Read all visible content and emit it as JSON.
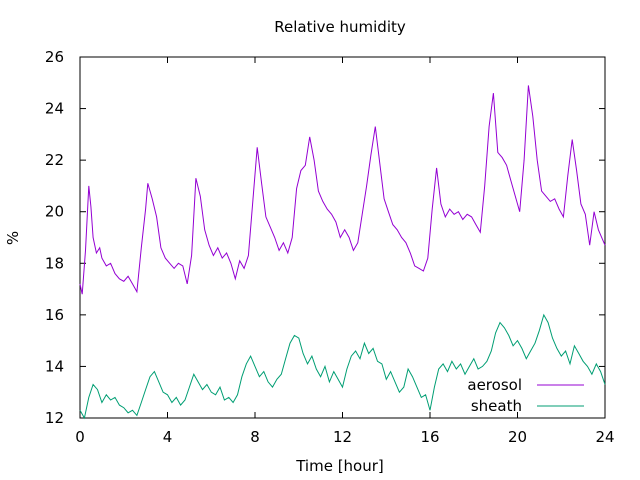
{
  "chart_data": {
    "type": "line",
    "title": "Relative humidity",
    "xlabel": "Time [hour]",
    "ylabel": "%",
    "xlim": [
      0,
      24
    ],
    "ylim": [
      12,
      26
    ],
    "x_ticks": [
      0,
      4,
      8,
      12,
      16,
      20,
      24
    ],
    "y_ticks": [
      12,
      14,
      16,
      18,
      20,
      22,
      24,
      26
    ],
    "grid": false,
    "legend_position": "bottom-right",
    "series": [
      {
        "name": "aerosol",
        "color": "#9400d3",
        "x": [
          0,
          0.1,
          0.25,
          0.4,
          0.5,
          0.6,
          0.75,
          0.9,
          1.0,
          1.2,
          1.4,
          1.6,
          1.8,
          2.0,
          2.2,
          2.4,
          2.6,
          2.8,
          3.0,
          3.1,
          3.3,
          3.5,
          3.7,
          3.9,
          4.1,
          4.3,
          4.5,
          4.7,
          4.9,
          5.1,
          5.3,
          5.5,
          5.7,
          5.9,
          6.1,
          6.3,
          6.5,
          6.7,
          6.9,
          7.1,
          7.3,
          7.5,
          7.7,
          7.9,
          8.1,
          8.3,
          8.5,
          8.7,
          8.9,
          9.1,
          9.3,
          9.5,
          9.7,
          9.9,
          10.1,
          10.3,
          10.5,
          10.7,
          10.9,
          11.1,
          11.3,
          11.5,
          11.7,
          11.9,
          12.1,
          12.3,
          12.5,
          12.7,
          12.9,
          13.1,
          13.3,
          13.5,
          13.7,
          13.9,
          14.1,
          14.3,
          14.5,
          14.7,
          14.9,
          15.1,
          15.3,
          15.5,
          15.7,
          15.9,
          16.1,
          16.3,
          16.5,
          16.7,
          16.9,
          17.1,
          17.3,
          17.5,
          17.7,
          17.9,
          18.1,
          18.3,
          18.5,
          18.7,
          18.9,
          19.1,
          19.3,
          19.5,
          19.7,
          19.9,
          20.1,
          20.3,
          20.5,
          20.7,
          20.9,
          21.1,
          21.3,
          21.5,
          21.7,
          21.9,
          22.1,
          22.3,
          22.5,
          22.7,
          22.9,
          23.1,
          23.3,
          23.5,
          23.7,
          23.9,
          24.0
        ],
        "y": [
          17.2,
          16.8,
          18.5,
          21.0,
          20.2,
          19.0,
          18.4,
          18.6,
          18.2,
          17.9,
          18.0,
          17.6,
          17.4,
          17.3,
          17.5,
          17.2,
          16.9,
          18.6,
          20.1,
          21.1,
          20.5,
          19.8,
          18.6,
          18.2,
          18.0,
          17.8,
          18.0,
          17.9,
          17.2,
          18.3,
          21.3,
          20.6,
          19.3,
          18.7,
          18.3,
          18.6,
          18.2,
          18.4,
          18.0,
          17.4,
          18.1,
          17.8,
          18.3,
          20.4,
          22.5,
          21.1,
          19.8,
          19.4,
          19.0,
          18.5,
          18.8,
          18.4,
          19.0,
          20.9,
          21.6,
          21.8,
          22.9,
          22.0,
          20.8,
          20.4,
          20.1,
          19.9,
          19.6,
          19.0,
          19.3,
          19.0,
          18.5,
          18.8,
          19.9,
          21.0,
          22.2,
          23.3,
          21.9,
          20.5,
          20.0,
          19.5,
          19.3,
          19.0,
          18.8,
          18.4,
          17.9,
          17.8,
          17.7,
          18.2,
          20.1,
          21.7,
          20.3,
          19.8,
          20.1,
          19.9,
          20.0,
          19.7,
          19.9,
          19.8,
          19.5,
          19.2,
          21.0,
          23.3,
          24.6,
          22.3,
          22.1,
          21.8,
          21.2,
          20.6,
          20.0,
          22.0,
          24.9,
          23.7,
          22.0,
          20.8,
          20.6,
          20.4,
          20.5,
          20.1,
          19.8,
          21.4,
          22.8,
          21.6,
          20.3,
          19.9,
          18.7,
          20.0,
          19.3,
          18.9,
          18.7
        ],
        "notes": ""
      },
      {
        "name": "sheath",
        "color": "#009e73",
        "x": [
          0,
          0.2,
          0.4,
          0.6,
          0.8,
          1.0,
          1.2,
          1.4,
          1.6,
          1.8,
          2.0,
          2.2,
          2.4,
          2.6,
          2.8,
          3.0,
          3.2,
          3.4,
          3.6,
          3.8,
          4.0,
          4.2,
          4.4,
          4.6,
          4.8,
          5.0,
          5.2,
          5.4,
          5.6,
          5.8,
          6.0,
          6.2,
          6.4,
          6.6,
          6.8,
          7.0,
          7.2,
          7.4,
          7.6,
          7.8,
          8.0,
          8.2,
          8.4,
          8.6,
          8.8,
          9.0,
          9.2,
          9.4,
          9.6,
          9.8,
          10.0,
          10.2,
          10.4,
          10.6,
          10.8,
          11.0,
          11.2,
          11.4,
          11.6,
          11.8,
          12.0,
          12.2,
          12.4,
          12.6,
          12.8,
          13.0,
          13.2,
          13.4,
          13.6,
          13.8,
          14.0,
          14.2,
          14.4,
          14.6,
          14.8,
          15.0,
          15.2,
          15.4,
          15.6,
          15.8,
          16.0,
          16.2,
          16.4,
          16.6,
          16.8,
          17.0,
          17.2,
          17.4,
          17.6,
          17.8,
          18.0,
          18.2,
          18.4,
          18.6,
          18.8,
          19.0,
          19.2,
          19.4,
          19.6,
          19.8,
          20.0,
          20.2,
          20.4,
          20.6,
          20.8,
          21.0,
          21.2,
          21.4,
          21.6,
          21.8,
          22.0,
          22.2,
          22.4,
          22.6,
          22.8,
          23.0,
          23.2,
          23.4,
          23.6,
          23.8,
          24.0
        ],
        "y": [
          12.3,
          12.0,
          12.8,
          13.3,
          13.1,
          12.6,
          12.9,
          12.7,
          12.8,
          12.5,
          12.4,
          12.2,
          12.3,
          12.1,
          12.6,
          13.1,
          13.6,
          13.8,
          13.4,
          13.0,
          12.9,
          12.6,
          12.8,
          12.5,
          12.7,
          13.2,
          13.7,
          13.4,
          13.1,
          13.3,
          13.0,
          12.9,
          13.2,
          12.7,
          12.8,
          12.6,
          12.9,
          13.6,
          14.1,
          14.4,
          14.0,
          13.6,
          13.8,
          13.4,
          13.2,
          13.5,
          13.7,
          14.3,
          14.9,
          15.2,
          15.1,
          14.5,
          14.1,
          14.4,
          13.9,
          13.6,
          14.0,
          13.4,
          13.8,
          13.5,
          13.2,
          13.9,
          14.4,
          14.6,
          14.3,
          14.9,
          14.5,
          14.7,
          14.2,
          14.1,
          13.5,
          13.8,
          13.4,
          13.0,
          13.2,
          13.9,
          13.6,
          13.2,
          12.8,
          12.9,
          12.3,
          13.2,
          13.9,
          14.1,
          13.8,
          14.2,
          13.9,
          14.1,
          13.7,
          14.0,
          14.3,
          13.9,
          14.0,
          14.2,
          14.6,
          15.3,
          15.7,
          15.5,
          15.2,
          14.8,
          15.0,
          14.7,
          14.3,
          14.6,
          14.9,
          15.4,
          16.0,
          15.7,
          15.1,
          14.7,
          14.4,
          14.6,
          14.1,
          14.8,
          14.5,
          14.2,
          14.0,
          13.7,
          14.1,
          13.8,
          13.3
        ],
        "notes": ""
      }
    ]
  }
}
